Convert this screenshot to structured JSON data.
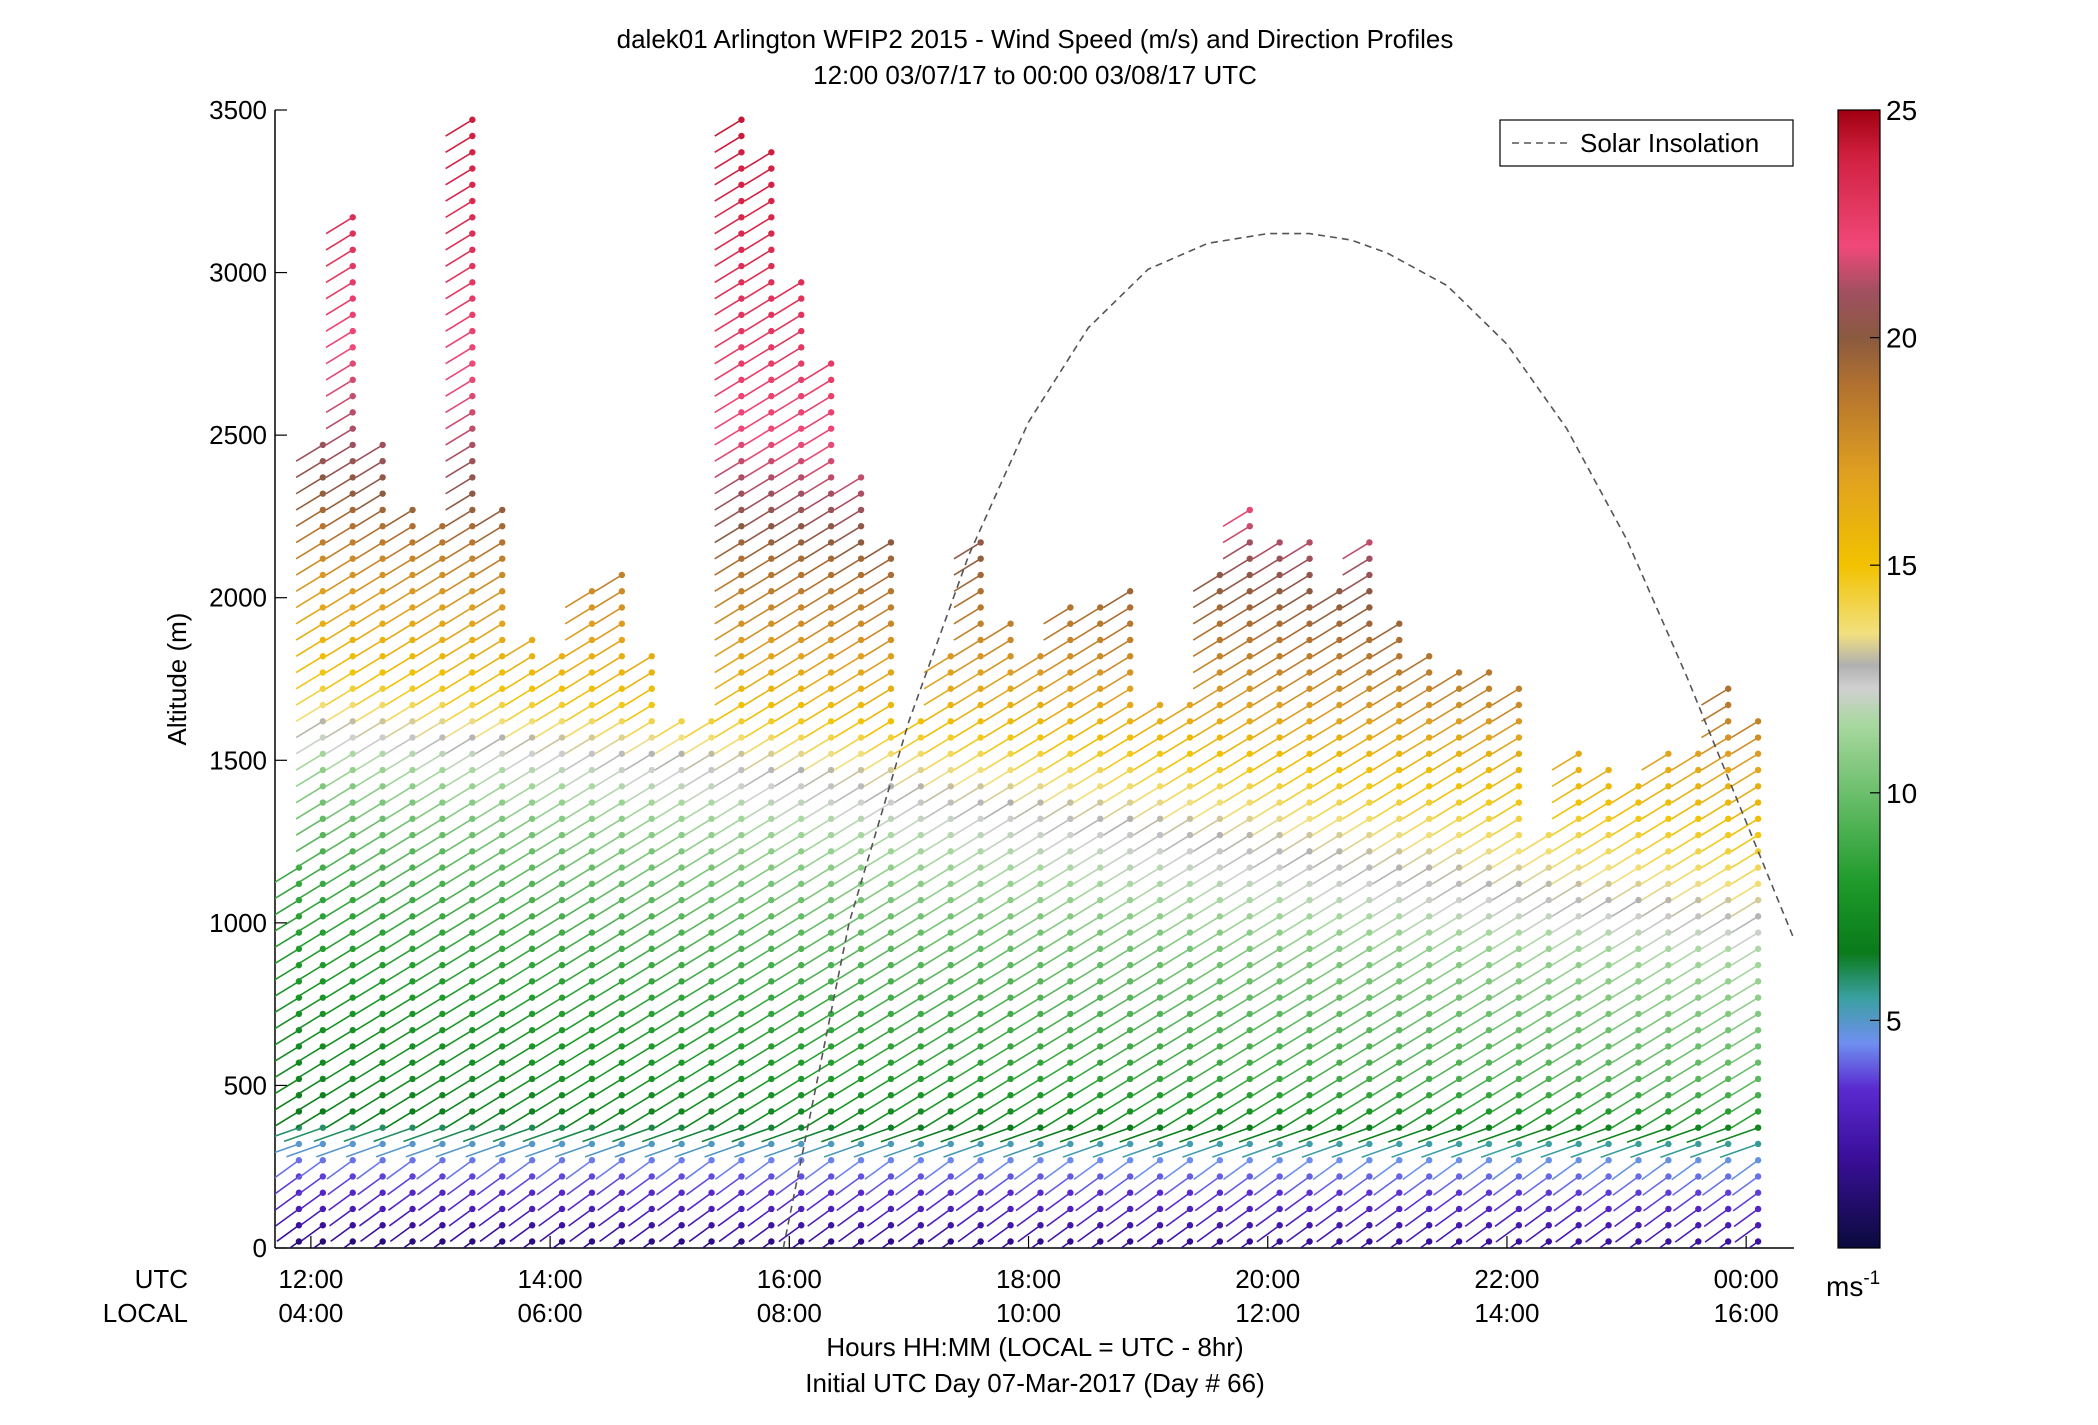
{
  "chart_data": {
    "type": "scatter",
    "title": "dalek01 Arlington WFIP2 2015 - Wind Speed (m/s) and Direction Profiles",
    "subtitle": "12:00 03/07/17 to 00:00 03/08/17  UTC",
    "ylabel": "Altitude (m)",
    "xlabel": "Hours HH:MM  (LOCAL = UTC - 8hr)",
    "xlabel2": "Initial UTC Day 07-Mar-2017 (Day # 66)",
    "x_row_label_utc": "UTC",
    "x_row_label_local": "LOCAL",
    "xlim": [
      11.7,
      24.4
    ],
    "ylim": [
      0,
      3500
    ],
    "y_ticks": [
      0,
      500,
      1000,
      1500,
      2000,
      2500,
      3000,
      3500
    ],
    "y_tick_labels": [
      "0",
      "500",
      "1000",
      "1500",
      "2000",
      "2500",
      "3000",
      "3500"
    ],
    "x_ticks": [
      12,
      14,
      16,
      18,
      20,
      22,
      24
    ],
    "x_tick_labels_utc": [
      "12:00",
      "14:00",
      "16:00",
      "18:00",
      "20:00",
      "22:00",
      "00:00"
    ],
    "x_tick_labels_local": [
      "04:00",
      "06:00",
      "08:00",
      "10:00",
      "12:00",
      "14:00",
      "16:00"
    ],
    "grid": false,
    "legend": {
      "position": "top-right",
      "entries": [
        "Solar Insolation"
      ]
    },
    "colorbar": {
      "range": [
        0,
        25
      ],
      "ticks": [
        5,
        10,
        15,
        20,
        25
      ],
      "tick_labels": [
        "5",
        "10",
        "15",
        "20",
        "25"
      ],
      "unit_label": "ms",
      "unit_exponent": "-1",
      "colormap": [
        [
          0,
          "#0a0a3c"
        ],
        [
          2,
          "#3a0f9a"
        ],
        [
          3.5,
          "#5a2ad0"
        ],
        [
          4.5,
          "#6f8ff0"
        ],
        [
          5.5,
          "#3aa0a0"
        ],
        [
          6.5,
          "#0a7a1a"
        ],
        [
          8,
          "#1e9a2a"
        ],
        [
          10,
          "#6cbf6c"
        ],
        [
          11.5,
          "#a8d8a0"
        ],
        [
          12.3,
          "#d0d0d0"
        ],
        [
          12.8,
          "#b0b0b0"
        ],
        [
          13.5,
          "#f2e080"
        ],
        [
          15,
          "#f2c200"
        ],
        [
          17,
          "#e0a020"
        ],
        [
          19,
          "#b07030"
        ],
        [
          20,
          "#8a5a40"
        ],
        [
          21,
          "#a05060"
        ],
        [
          22,
          "#f04878"
        ],
        [
          24,
          "#d02040"
        ],
        [
          25,
          "#a00010"
        ]
      ]
    },
    "solar_insolation": {
      "x": [
        15.95,
        16.5,
        17,
        17.5,
        18,
        18.5,
        19,
        19.5,
        20,
        20.35,
        20.7,
        21,
        21.5,
        22,
        22.5,
        23,
        23.5,
        24,
        24.4
      ],
      "y": [
        0,
        1000,
        1620,
        2130,
        2540,
        2830,
        3010,
        3090,
        3120,
        3120,
        3100,
        3060,
        2960,
        2780,
        2520,
        2180,
        1760,
        1310,
        950
      ]
    },
    "profile_times": [
      11.9,
      12.1,
      12.35,
      12.6,
      12.85,
      13.1,
      13.35,
      13.6,
      13.85,
      14.1,
      14.35,
      14.6,
      14.85,
      15.1,
      15.35,
      15.6,
      15.85,
      16.1,
      16.35,
      16.6,
      16.85,
      17.1,
      17.35,
      17.6,
      17.85,
      18.1,
      18.35,
      18.6,
      18.85,
      19.1,
      19.35,
      19.6,
      19.85,
      20.1,
      20.35,
      20.6,
      20.85,
      21.1,
      21.35,
      21.6,
      21.85,
      22.1,
      22.35,
      22.6,
      22.85,
      23.1,
      23.35,
      23.6,
      23.85,
      24.1
    ],
    "profile_top_altitude_m": [
      1200,
      2480,
      3180,
      2480,
      2280,
      2250,
      3480,
      2290,
      1910,
      1860,
      2060,
      2070,
      1850,
      1640,
      1660,
      3470,
      3400,
      2990,
      2750,
      2410,
      2180,
      1640,
      1850,
      2200,
      1950,
      1860,
      1990,
      1980,
      2060,
      1700,
      1700,
      2070,
      2270,
      2200,
      2210,
      2050,
      2200,
      1930,
      1860,
      1770,
      1780,
      1730,
      1300,
      1560,
      1500,
      1420,
      1520,
      1560,
      1760,
      1640
    ],
    "speed_profile_by_altitude": {
      "altitude_m": [
        0,
        100,
        200,
        300,
        400,
        500,
        700,
        900,
        1100,
        1300,
        1500,
        1700,
        1900,
        2100,
        2300,
        2500,
        2800,
        3100,
        3500
      ],
      "speed_early_ms": [
        1,
        2.5,
        3.5,
        4.5,
        6.5,
        7,
        7.5,
        8,
        8.5,
        9.5,
        11,
        14,
        16,
        17.5,
        19.5,
        21,
        22,
        23,
        24
      ],
      "speed_late_ms": [
        2,
        3,
        4,
        5,
        8,
        9.5,
        10.5,
        11.5,
        13.5,
        15,
        17,
        19,
        20.5,
        22,
        23.5,
        24,
        24.5,
        24.5,
        25
      ]
    },
    "direction_from_deg": {
      "lower_layer_deg": 240,
      "upper_layer_deg": 225
    }
  }
}
